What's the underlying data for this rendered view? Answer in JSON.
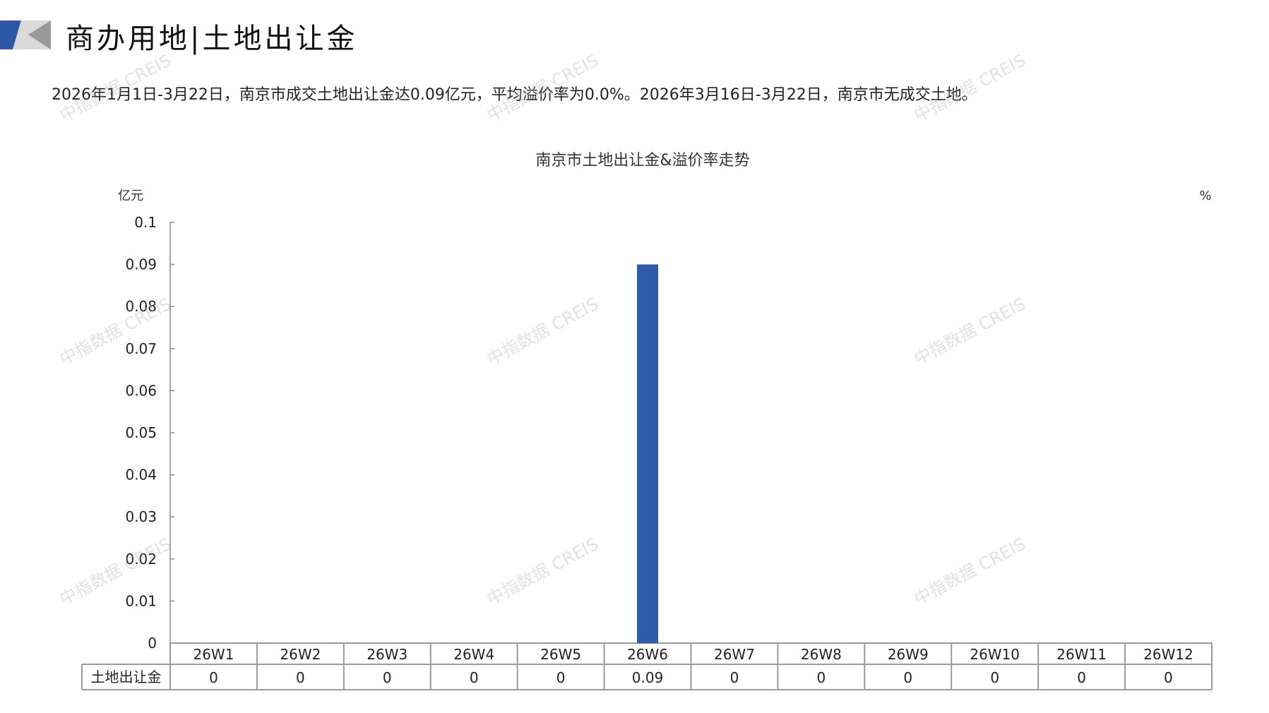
{
  "header": {
    "title": "商办用地|土地出让金",
    "summary": "2026年1月1日-3月22日，南京市成交土地出让金达0.09亿元，平均溢价率为0.0%。2026年3月16日-3月22日，南京市无成交土地。",
    "colors": {
      "logo_blue": "#2f57a8",
      "logo_gray": "#b0b0b0"
    }
  },
  "watermark": "中指数据 CREIS",
  "chart_data": {
    "type": "bar",
    "title": "南京市土地出让金&溢价率走势",
    "ylabel": "亿元",
    "y2label": "%",
    "ylim": [
      0,
      0.1
    ],
    "yticks": [
      "0",
      "0.01",
      "0.02",
      "0.03",
      "0.04",
      "0.05",
      "0.06",
      "0.07",
      "0.08",
      "0.09",
      "0.1"
    ],
    "categories": [
      "26W1",
      "26W2",
      "26W3",
      "26W4",
      "26W5",
      "26W6",
      "26W7",
      "26W8",
      "26W9",
      "26W10",
      "26W11",
      "26W12"
    ],
    "series": [
      {
        "name": "土地出让金",
        "values": [
          0,
          0,
          0,
          0,
          0,
          0.09,
          0,
          0,
          0,
          0,
          0,
          0
        ],
        "labels": [
          "0",
          "0",
          "0",
          "0",
          "0",
          "0.09",
          "0",
          "0",
          "0",
          "0",
          "0",
          "0"
        ],
        "color": "#2f5ba8"
      }
    ],
    "grid": false,
    "legend": "data-table"
  }
}
